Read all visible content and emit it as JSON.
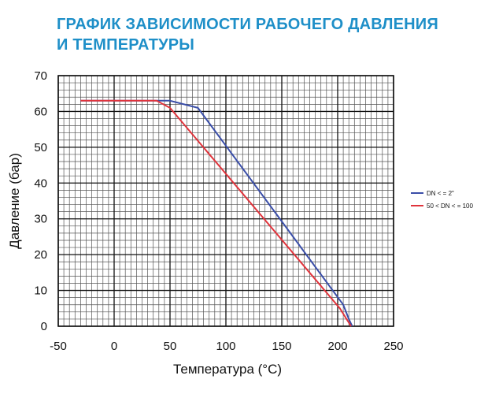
{
  "chart_data": {
    "type": "line",
    "title_lines": [
      "ГРАФИК ЗАВИСИМОСТИ РАБОЧЕГО ДАВЛЕНИЯ",
      "И ТЕМПЕРАТУРЫ"
    ],
    "xlabel": "Температура (°C)",
    "ylabel": "Давление (бар)",
    "xlim": [
      -50,
      250
    ],
    "ylim": [
      0,
      70
    ],
    "x_ticks": [
      -50,
      0,
      50,
      100,
      150,
      200,
      250
    ],
    "y_ticks": [
      0,
      10,
      20,
      30,
      40,
      50,
      60,
      70
    ],
    "x_tick_labels": [
      "-50",
      "0",
      "50",
      "100",
      "150",
      "200",
      "250"
    ],
    "y_tick_labels": [
      "0",
      "10",
      "20",
      "30",
      "40",
      "50",
      "60",
      "70"
    ],
    "grid": true,
    "legend_position": "right",
    "series": [
      {
        "name": "DN < = 2\"",
        "color": "#3a4ea8",
        "x": [
          -30,
          50,
          75,
          205,
          210,
          213
        ],
        "y": [
          63,
          63,
          61,
          6,
          2,
          0
        ]
      },
      {
        "name": "50 < DN < = 100",
        "color": "#e0343c",
        "x": [
          -30,
          38,
          50,
          202,
          210,
          212
        ],
        "y": [
          63,
          63,
          61,
          5,
          1,
          0
        ]
      }
    ]
  }
}
